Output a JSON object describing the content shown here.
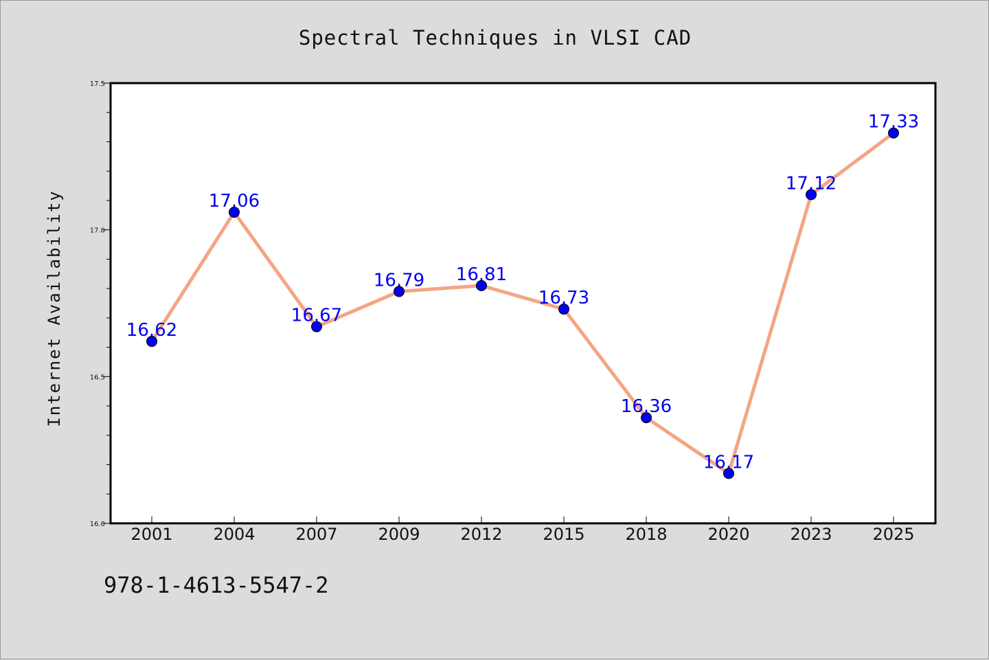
{
  "chart_data": {
    "type": "line",
    "title": "Spectral Techniques in VLSI CAD",
    "xlabel": "",
    "ylabel": "Internet Availability",
    "categories": [
      "2001",
      "2004",
      "2007",
      "2009",
      "2012",
      "2015",
      "2018",
      "2020",
      "2023",
      "2025"
    ],
    "series": [
      {
        "values": [
          16.62,
          17.06,
          16.67,
          16.79,
          16.81,
          16.73,
          16.36,
          16.17,
          17.12,
          17.33
        ],
        "labels": [
          "16.62",
          "17.06",
          "16.67",
          "16.79",
          "16.81",
          "16.73",
          "16.36",
          "16.17",
          "17.12",
          "17.33"
        ],
        "line_color": "#f4a582",
        "marker_color": "#0000ee"
      }
    ],
    "ylim": [
      16.0,
      17.5
    ],
    "yticks": [
      "16.0",
      "16.5",
      "17.0",
      "17.5"
    ],
    "ytick_values": [
      16.0,
      16.5,
      17.0,
      17.5
    ],
    "grid": false,
    "label_color": "#0000ee"
  },
  "footer_text": "978-1-4613-5547-2"
}
